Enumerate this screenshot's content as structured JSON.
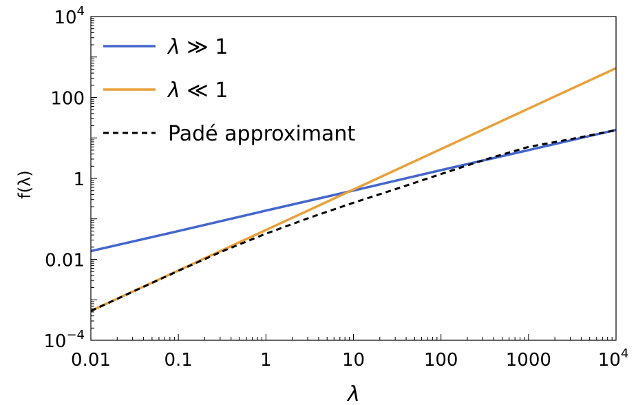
{
  "chart_data": {
    "type": "line",
    "title": "",
    "xlabel": "λ",
    "ylabel": "f(λ)",
    "x_scale": "log",
    "y_scale": "log",
    "xlim": [
      0.01,
      10000
    ],
    "ylim": [
      0.0001,
      10000
    ],
    "grid": false,
    "legend_position": "top-left",
    "x_ticks": [
      {
        "value": 0.01,
        "label": "0.01"
      },
      {
        "value": 0.1,
        "label": "0.1"
      },
      {
        "value": 1,
        "label": "1"
      },
      {
        "value": 10,
        "label": "10"
      },
      {
        "value": 100,
        "label": "100"
      },
      {
        "value": 1000,
        "label": "1000"
      },
      {
        "value": 10000,
        "base": "10",
        "exp": "4"
      }
    ],
    "y_ticks": [
      {
        "value": 0.0001,
        "base": "10",
        "exp": "−4"
      },
      {
        "value": 0.01,
        "label": "0.01"
      },
      {
        "value": 1,
        "label": "1"
      },
      {
        "value": 100,
        "label": "100"
      },
      {
        "value": 10000,
        "base": "10",
        "exp": "4"
      }
    ],
    "series": [
      {
        "name": "λ ≫ 1",
        "color": "#4466cc",
        "dash": "solid",
        "x": [
          0.01,
          0.1,
          1,
          10,
          100,
          1000,
          10000
        ],
        "y": [
          0.016,
          0.05,
          0.16,
          0.5,
          1.6,
          5.0,
          15.8
        ]
      },
      {
        "name": "λ ≪ 1",
        "color": "#e8a03a",
        "dash": "solid",
        "x": [
          0.01,
          0.1,
          1,
          10,
          100,
          1000,
          10000
        ],
        "y": [
          0.00053,
          0.0053,
          0.053,
          0.53,
          5.3,
          53,
          530
        ]
      },
      {
        "name": "Padé approximant",
        "color": "#000000",
        "dash": "dashed",
        "x": [
          0.01,
          0.0316,
          0.1,
          0.316,
          1,
          3.16,
          10,
          31.6,
          100,
          316,
          1000,
          3162,
          10000
        ],
        "y": [
          0.00053,
          0.00166,
          0.0052,
          0.0157,
          0.043,
          0.107,
          0.25,
          0.56,
          1.28,
          2.9,
          6.0,
          9.5,
          15.5
        ]
      }
    ]
  }
}
